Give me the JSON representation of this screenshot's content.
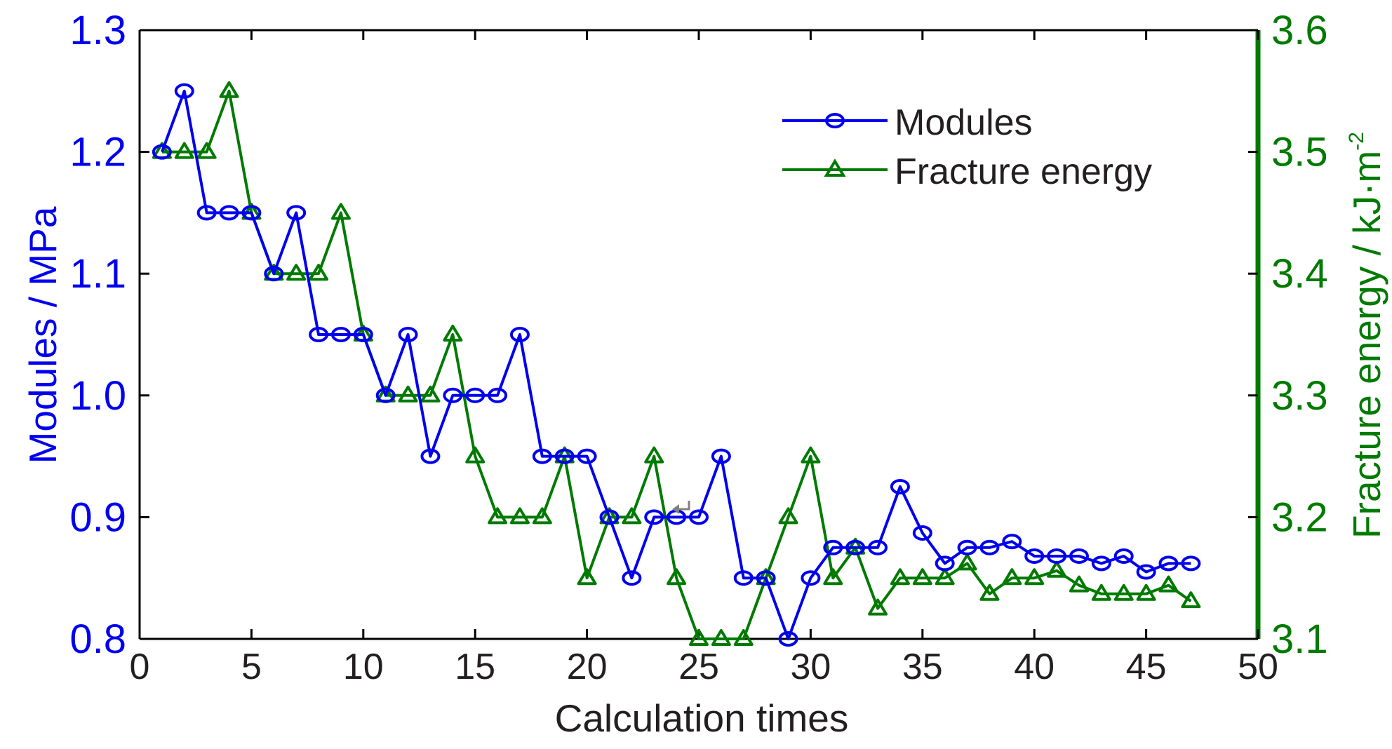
{
  "chart_data": {
    "type": "line",
    "xlabel": "Calculation times",
    "ylabel_left": "Modules / MPa",
    "ylabel_right_main": "Fracture energy / kJ·m",
    "ylabel_right_sup": "-2",
    "xlim": [
      0,
      50
    ],
    "ylim_left": [
      0.8,
      1.3
    ],
    "ylim_right": [
      3.1,
      3.6
    ],
    "xticks": [
      "0",
      "5",
      "10",
      "15",
      "20",
      "25",
      "30",
      "35",
      "40",
      "45",
      "50"
    ],
    "yticks_left": [
      "0.8",
      "0.9",
      "1.0",
      "1.1",
      "1.2",
      "1.3"
    ],
    "yticks_right": [
      "3.1",
      "3.2",
      "3.3",
      "3.4",
      "3.5",
      "3.6"
    ],
    "legend_position": "top-right",
    "grid": false,
    "x": [
      1,
      2,
      3,
      4,
      5,
      6,
      7,
      8,
      9,
      10,
      11,
      12,
      13,
      14,
      15,
      16,
      17,
      18,
      19,
      20,
      21,
      22,
      23,
      24,
      25,
      26,
      27,
      28,
      29,
      30,
      31,
      32,
      33,
      34,
      35,
      36,
      37,
      38,
      39,
      40,
      41,
      42,
      43,
      44,
      45,
      46,
      47
    ],
    "series": [
      {
        "name": "Modules",
        "axis": "left",
        "marker": "circle",
        "color": "#0000ee",
        "values": [
          1.2,
          1.25,
          1.15,
          1.15,
          1.15,
          1.1,
          1.15,
          1.05,
          1.05,
          1.05,
          1.0,
          1.05,
          0.95,
          1.0,
          1.0,
          1.0,
          1.05,
          0.95,
          0.95,
          0.95,
          0.9,
          0.85,
          0.9,
          0.9,
          0.9,
          0.95,
          0.85,
          0.85,
          0.8,
          0.85,
          0.875,
          0.875,
          0.875,
          0.925,
          0.887,
          0.862,
          0.875,
          0.875,
          0.88,
          0.868,
          0.868,
          0.868,
          0.862,
          0.868,
          0.855,
          0.862,
          0.862
        ]
      },
      {
        "name": "Fracture energy",
        "axis": "right",
        "marker": "triangle",
        "color": "#007a00",
        "values": [
          3.5,
          3.5,
          3.5,
          3.55,
          3.45,
          3.4,
          3.4,
          3.4,
          3.45,
          3.35,
          3.3,
          3.3,
          3.3,
          3.35,
          3.25,
          3.2,
          3.2,
          3.2,
          3.25,
          3.15,
          3.2,
          3.2,
          3.25,
          3.15,
          3.1,
          3.1,
          3.1,
          3.15,
          3.2,
          3.25,
          3.15,
          3.175,
          3.125,
          3.15,
          3.15,
          3.15,
          3.162,
          3.137,
          3.15,
          3.15,
          3.156,
          3.144,
          3.137,
          3.137,
          3.137,
          3.144,
          3.131
        ]
      }
    ]
  },
  "colors": {
    "axis": "#000000",
    "left_axis_text": "#0000ee",
    "right_axis_text": "#007a00",
    "label_text": "#231f20"
  },
  "icons": {
    "cursor": "return-arrow-icon"
  }
}
